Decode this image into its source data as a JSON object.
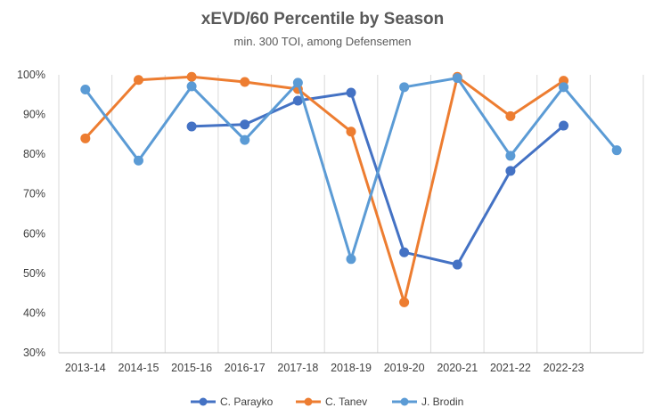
{
  "chart_data": {
    "type": "line",
    "title": "xEVD/60 Percentile by Season",
    "subtitle": "min. 300 TOI, among Defensemen",
    "xlabel": "",
    "ylabel": "",
    "ylim": [
      30,
      100
    ],
    "yticks": [
      30,
      40,
      50,
      60,
      70,
      80,
      90,
      100
    ],
    "ytick_labels": [
      "30%",
      "40%",
      "50%",
      "60%",
      "70%",
      "80%",
      "90%",
      "100%"
    ],
    "categories": [
      "2013-14",
      "2014-15",
      "2015-16",
      "2016-17",
      "2017-18",
      "2018-19",
      "2019-20",
      "2020-21",
      "2021-22",
      "2022-23",
      ""
    ],
    "grid": "vertical",
    "legend": "bottom",
    "series": [
      {
        "name": "C. Parayko",
        "color": "#4472C4",
        "values": [
          null,
          null,
          87.0,
          87.5,
          93.5,
          95.5,
          55.3,
          52.2,
          75.8,
          87.2,
          null
        ]
      },
      {
        "name": "C. Tanev",
        "color": "#ED7D31",
        "values": [
          84.0,
          98.7,
          99.5,
          98.2,
          96.4,
          85.7,
          42.7,
          99.5,
          89.6,
          98.5,
          null
        ]
      },
      {
        "name": "J. Brodin",
        "color": "#5B9BD5",
        "values": [
          96.3,
          78.4,
          97.1,
          83.6,
          98.0,
          53.6,
          96.9,
          99.2,
          79.6,
          96.9,
          81.0
        ]
      }
    ]
  }
}
